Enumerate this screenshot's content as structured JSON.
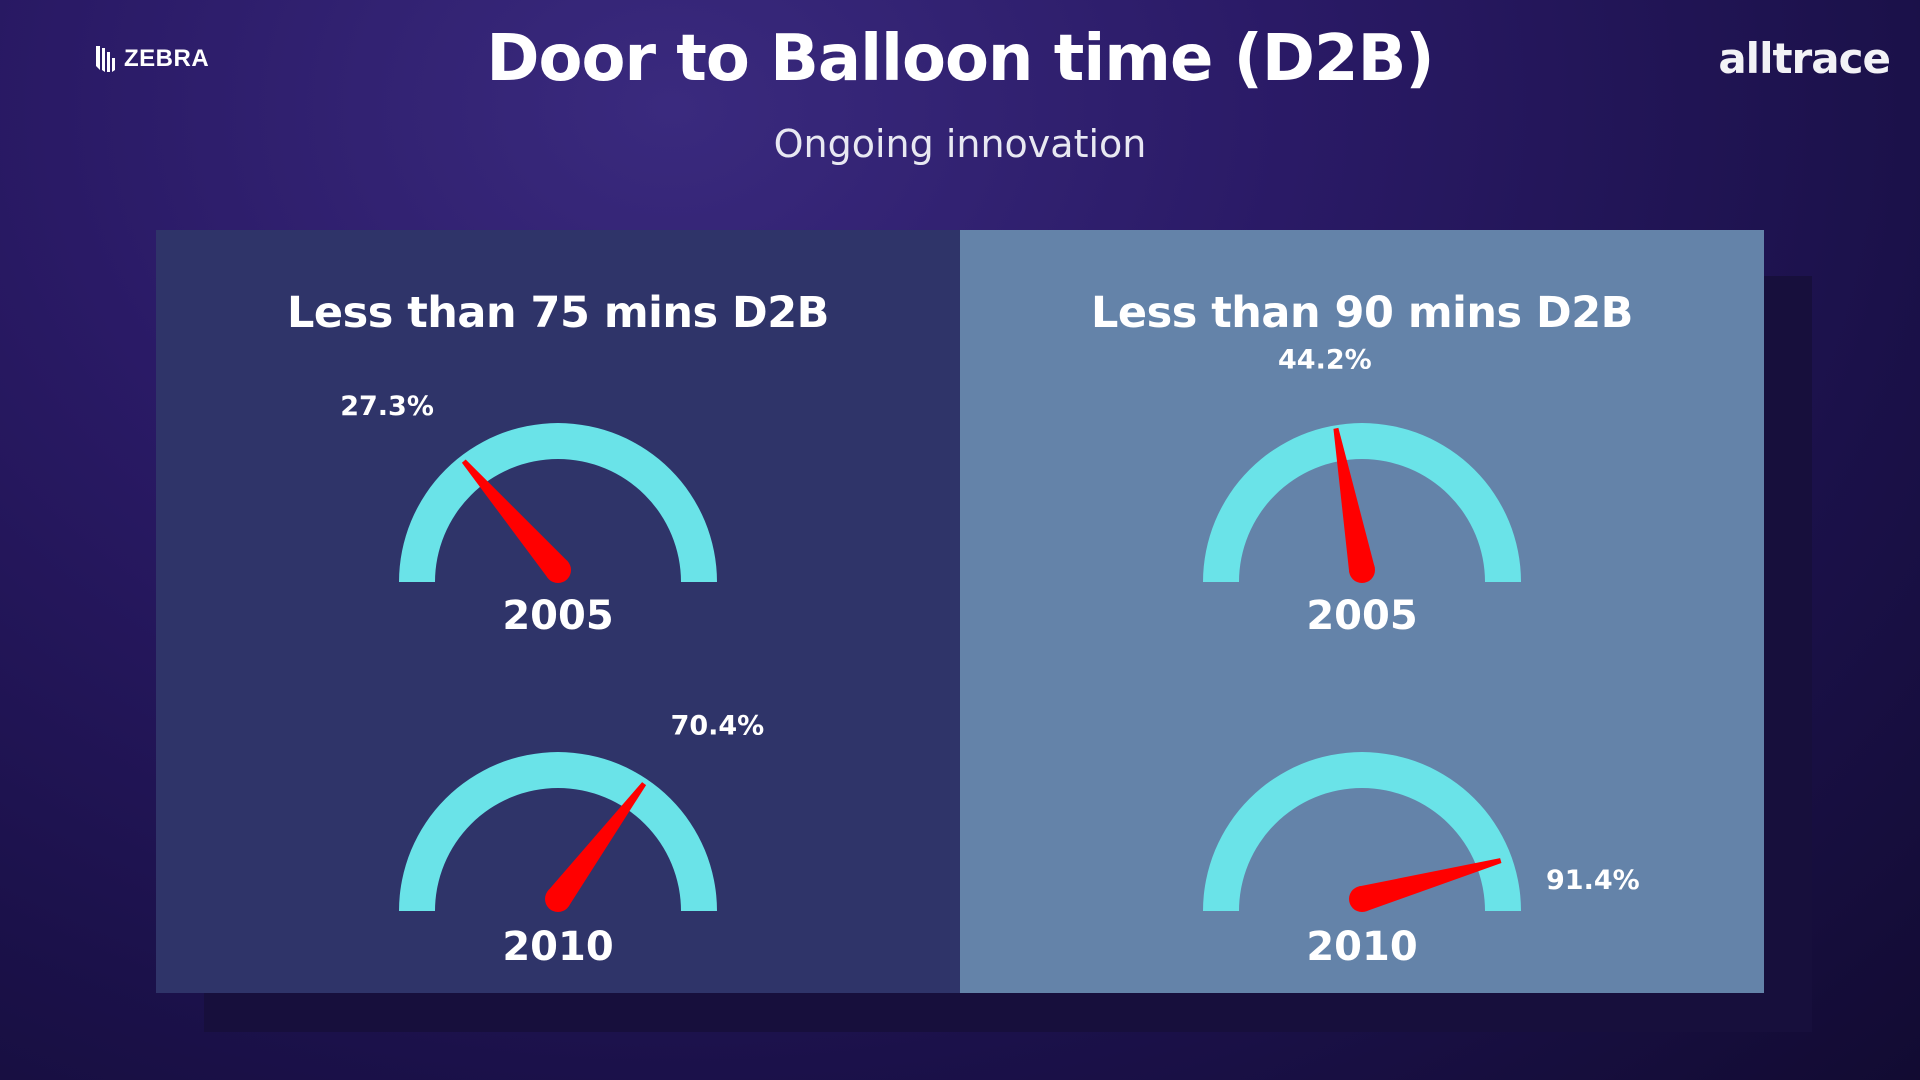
{
  "header": {
    "title": "Door to Balloon time (D2B)",
    "subtitle": "Ongoing innovation",
    "logo_left_text": "ZEBRA",
    "logo_right_text": "alltrace"
  },
  "colors": {
    "gauge_arc": "#6ae3e8",
    "needle": "#ff0000",
    "panel_left": "#2f3469",
    "panel_right": "#6483a9"
  },
  "chart_data": [
    {
      "type": "gauge",
      "title": "Less than 75 mins D2B",
      "range": [
        0,
        100
      ],
      "gauges": [
        {
          "category": "2005",
          "value": 27.3,
          "label": "27.3%"
        },
        {
          "category": "2010",
          "value": 70.4,
          "label": "70.4%"
        }
      ]
    },
    {
      "type": "gauge",
      "title": "Less than 90 mins D2B",
      "range": [
        0,
        100
      ],
      "gauges": [
        {
          "category": "2005",
          "value": 44.2,
          "label": "44.2%"
        },
        {
          "category": "2010",
          "value": 91.4,
          "label": "91.4%"
        }
      ]
    }
  ]
}
